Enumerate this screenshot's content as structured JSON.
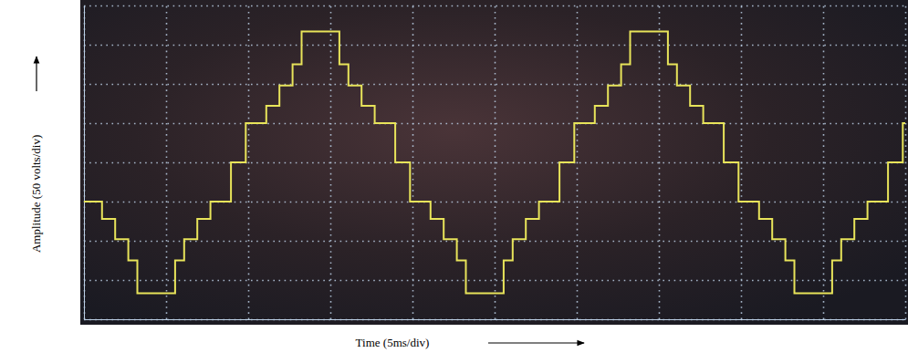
{
  "chart_data": {
    "type": "line",
    "xlabel": "Time (5ms/div)",
    "ylabel": "Amplitude (50 volts/div)",
    "x": [
      0,
      1.1,
      1.9,
      2.7,
      3.25,
      5.55,
      6.1,
      6.9,
      7.7,
      8.95,
      9.85,
      11.1,
      11.9,
      12.7,
      13.25,
      15.55,
      16.1,
      16.9,
      17.7,
      18.95,
      19.85,
      21.1,
      21.9,
      22.7,
      23.25,
      25.55,
      26.1,
      26.9,
      27.7,
      28.95,
      29.85,
      31.1,
      31.9,
      32.7,
      33.25,
      35.55,
      36.1,
      36.9,
      37.7,
      38.95,
      39.85,
      41.1,
      41.9,
      42.7,
      43.25,
      45.55,
      46.1,
      46.9,
      47.7,
      48.95,
      49.85,
      50
    ],
    "series": [
      {
        "color": "#e8e45a",
        "line_style": "step",
        "values": [
          -50,
          -72,
          -98,
          -125,
          -167,
          -125,
          -98,
          -72,
          -50,
          0,
          50,
          72,
          98,
          125,
          167,
          125,
          98,
          72,
          50,
          0,
          -50,
          -72,
          -98,
          -125,
          -167,
          -125,
          -98,
          -72,
          -50,
          0,
          50,
          72,
          98,
          125,
          167,
          125,
          98,
          72,
          50,
          0,
          -50,
          -72,
          -98,
          -125,
          -167,
          -125,
          -98,
          -72,
          -50,
          0,
          50,
          50
        ]
      }
    ],
    "xlim": [
      0,
      50
    ],
    "xticks": [
      0,
      5,
      10,
      15,
      20,
      25,
      30,
      35,
      40,
      45,
      50
    ],
    "ylim": [
      -200,
      200
    ],
    "yticks": [
      -200,
      -150,
      -100,
      -50,
      0,
      50,
      100,
      150,
      200
    ],
    "grid": true,
    "tick_labels": false
  }
}
